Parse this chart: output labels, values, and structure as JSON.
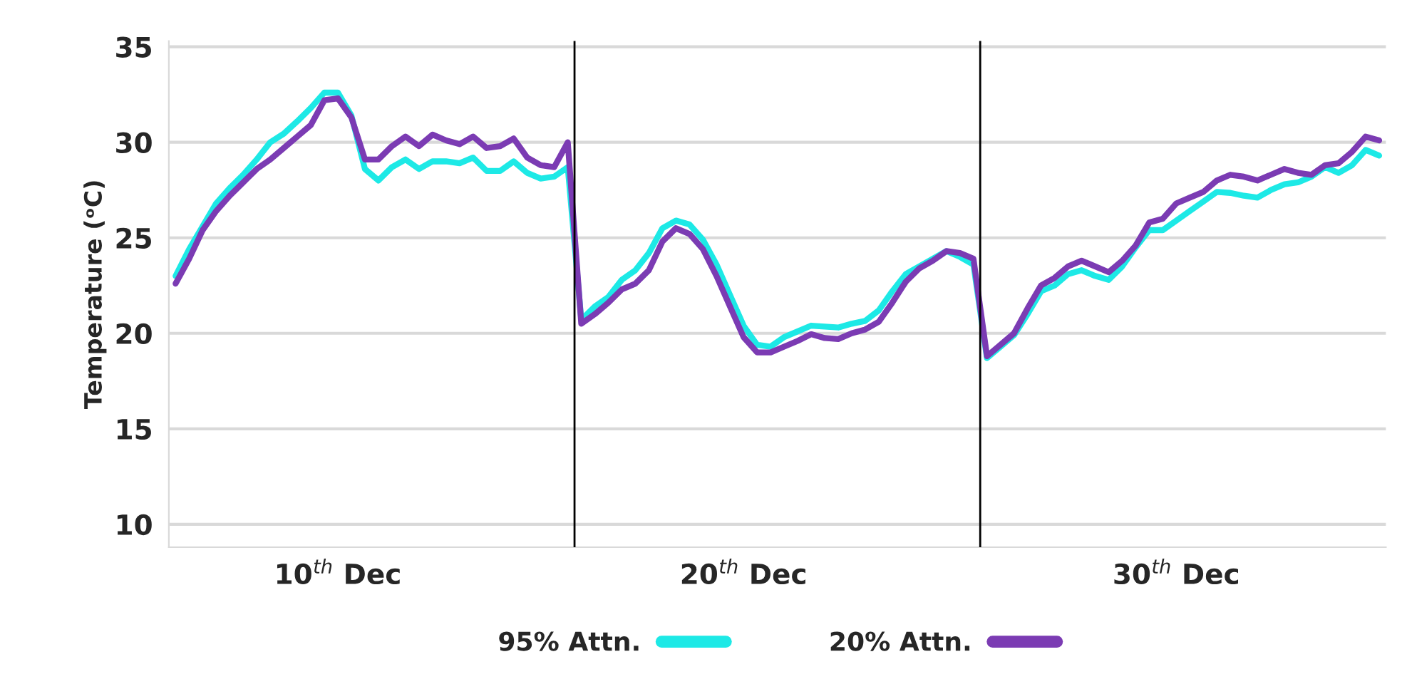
{
  "chart_data": {
    "type": "line",
    "ylabel": "Temperature (ᵒC)",
    "categories": [
      null,
      null,
      null,
      null,
      null,
      null,
      null,
      null,
      null,
      null,
      null,
      null,
      "10$^{th}$ Dec",
      null,
      null,
      null,
      null,
      null,
      null,
      null,
      null,
      null,
      null,
      null,
      null,
      null,
      null,
      null,
      null,
      null,
      null,
      null,
      null,
      null,
      null,
      null,
      null,
      null,
      null,
      null,
      null,
      null,
      "20$^{th}$ Dec",
      null,
      null,
      null,
      null,
      null,
      null,
      null,
      null,
      null,
      null,
      null,
      null,
      null,
      null,
      null,
      null,
      null,
      null,
      null,
      null,
      null,
      null,
      null,
      null,
      null,
      null,
      null,
      null,
      null,
      null,
      null,
      "30$^{th}$ Dec",
      null,
      null,
      null,
      null,
      null,
      null,
      null,
      null,
      null,
      null,
      null,
      null,
      null,
      null,
      null
    ],
    "ylim": [
      8.8,
      35.3
    ],
    "yticks": [
      10,
      15,
      20,
      25,
      30,
      35
    ],
    "grid": "y",
    "legend": "bottom",
    "marker": "none",
    "line_style": "solid",
    "series": [
      {
        "name": "95% Attn.",
        "color": "#1de9e6",
        "values": [
          23.0,
          24.4,
          25.6,
          26.8,
          27.6,
          28.3,
          29.1,
          30.0,
          30.45,
          31.1,
          31.8,
          32.6,
          32.6,
          31.4,
          28.6,
          28.0,
          28.7,
          29.1,
          28.6,
          29.0,
          29.0,
          28.9,
          29.2,
          28.5,
          28.5,
          29.0,
          28.4,
          28.1,
          28.2,
          28.7,
          20.7,
          21.4,
          21.9,
          22.8,
          23.3,
          24.2,
          25.5,
          25.9,
          25.7,
          24.9,
          23.6,
          22.0,
          20.4,
          19.4,
          19.3,
          19.8,
          20.1,
          20.4,
          20.35,
          20.3,
          20.5,
          20.65,
          21.2,
          22.2,
          23.1,
          23.5,
          23.9,
          24.3,
          24.0,
          23.6,
          18.7,
          19.3,
          19.9,
          21.0,
          22.2,
          22.5,
          23.1,
          23.3,
          23.0,
          22.8,
          23.5,
          24.5,
          25.4,
          25.4,
          25.9,
          26.4,
          26.9,
          27.4,
          27.35,
          27.2,
          27.1,
          27.5,
          27.8,
          27.9,
          28.2,
          28.7,
          28.4,
          28.8,
          29.6,
          29.3
        ]
      },
      {
        "name": "20% Attn.",
        "color": "#7b3bb3",
        "values": [
          22.6,
          23.9,
          25.4,
          26.4,
          27.2,
          27.9,
          28.6,
          29.1,
          29.7,
          30.3,
          30.9,
          32.2,
          32.3,
          31.3,
          29.1,
          29.1,
          29.8,
          30.3,
          29.8,
          30.4,
          30.1,
          29.9,
          30.3,
          29.7,
          29.8,
          30.2,
          29.2,
          28.8,
          28.7,
          30.0,
          20.5,
          21.0,
          21.6,
          22.3,
          22.6,
          23.3,
          24.8,
          25.5,
          25.2,
          24.4,
          23.0,
          21.4,
          19.8,
          19.0,
          19.0,
          19.3,
          19.6,
          19.95,
          19.75,
          19.7,
          20.0,
          20.2,
          20.6,
          21.6,
          22.7,
          23.4,
          23.8,
          24.3,
          24.2,
          23.9,
          18.8,
          19.4,
          20.0,
          21.3,
          22.5,
          22.9,
          23.5,
          23.8,
          23.5,
          23.2,
          23.8,
          24.6,
          25.8,
          26.0,
          26.8,
          27.1,
          27.4,
          28.0,
          28.3,
          28.2,
          28.0,
          28.3,
          28.6,
          28.4,
          28.3,
          28.8,
          28.9,
          29.5,
          30.3,
          30.1
        ]
      }
    ]
  }
}
